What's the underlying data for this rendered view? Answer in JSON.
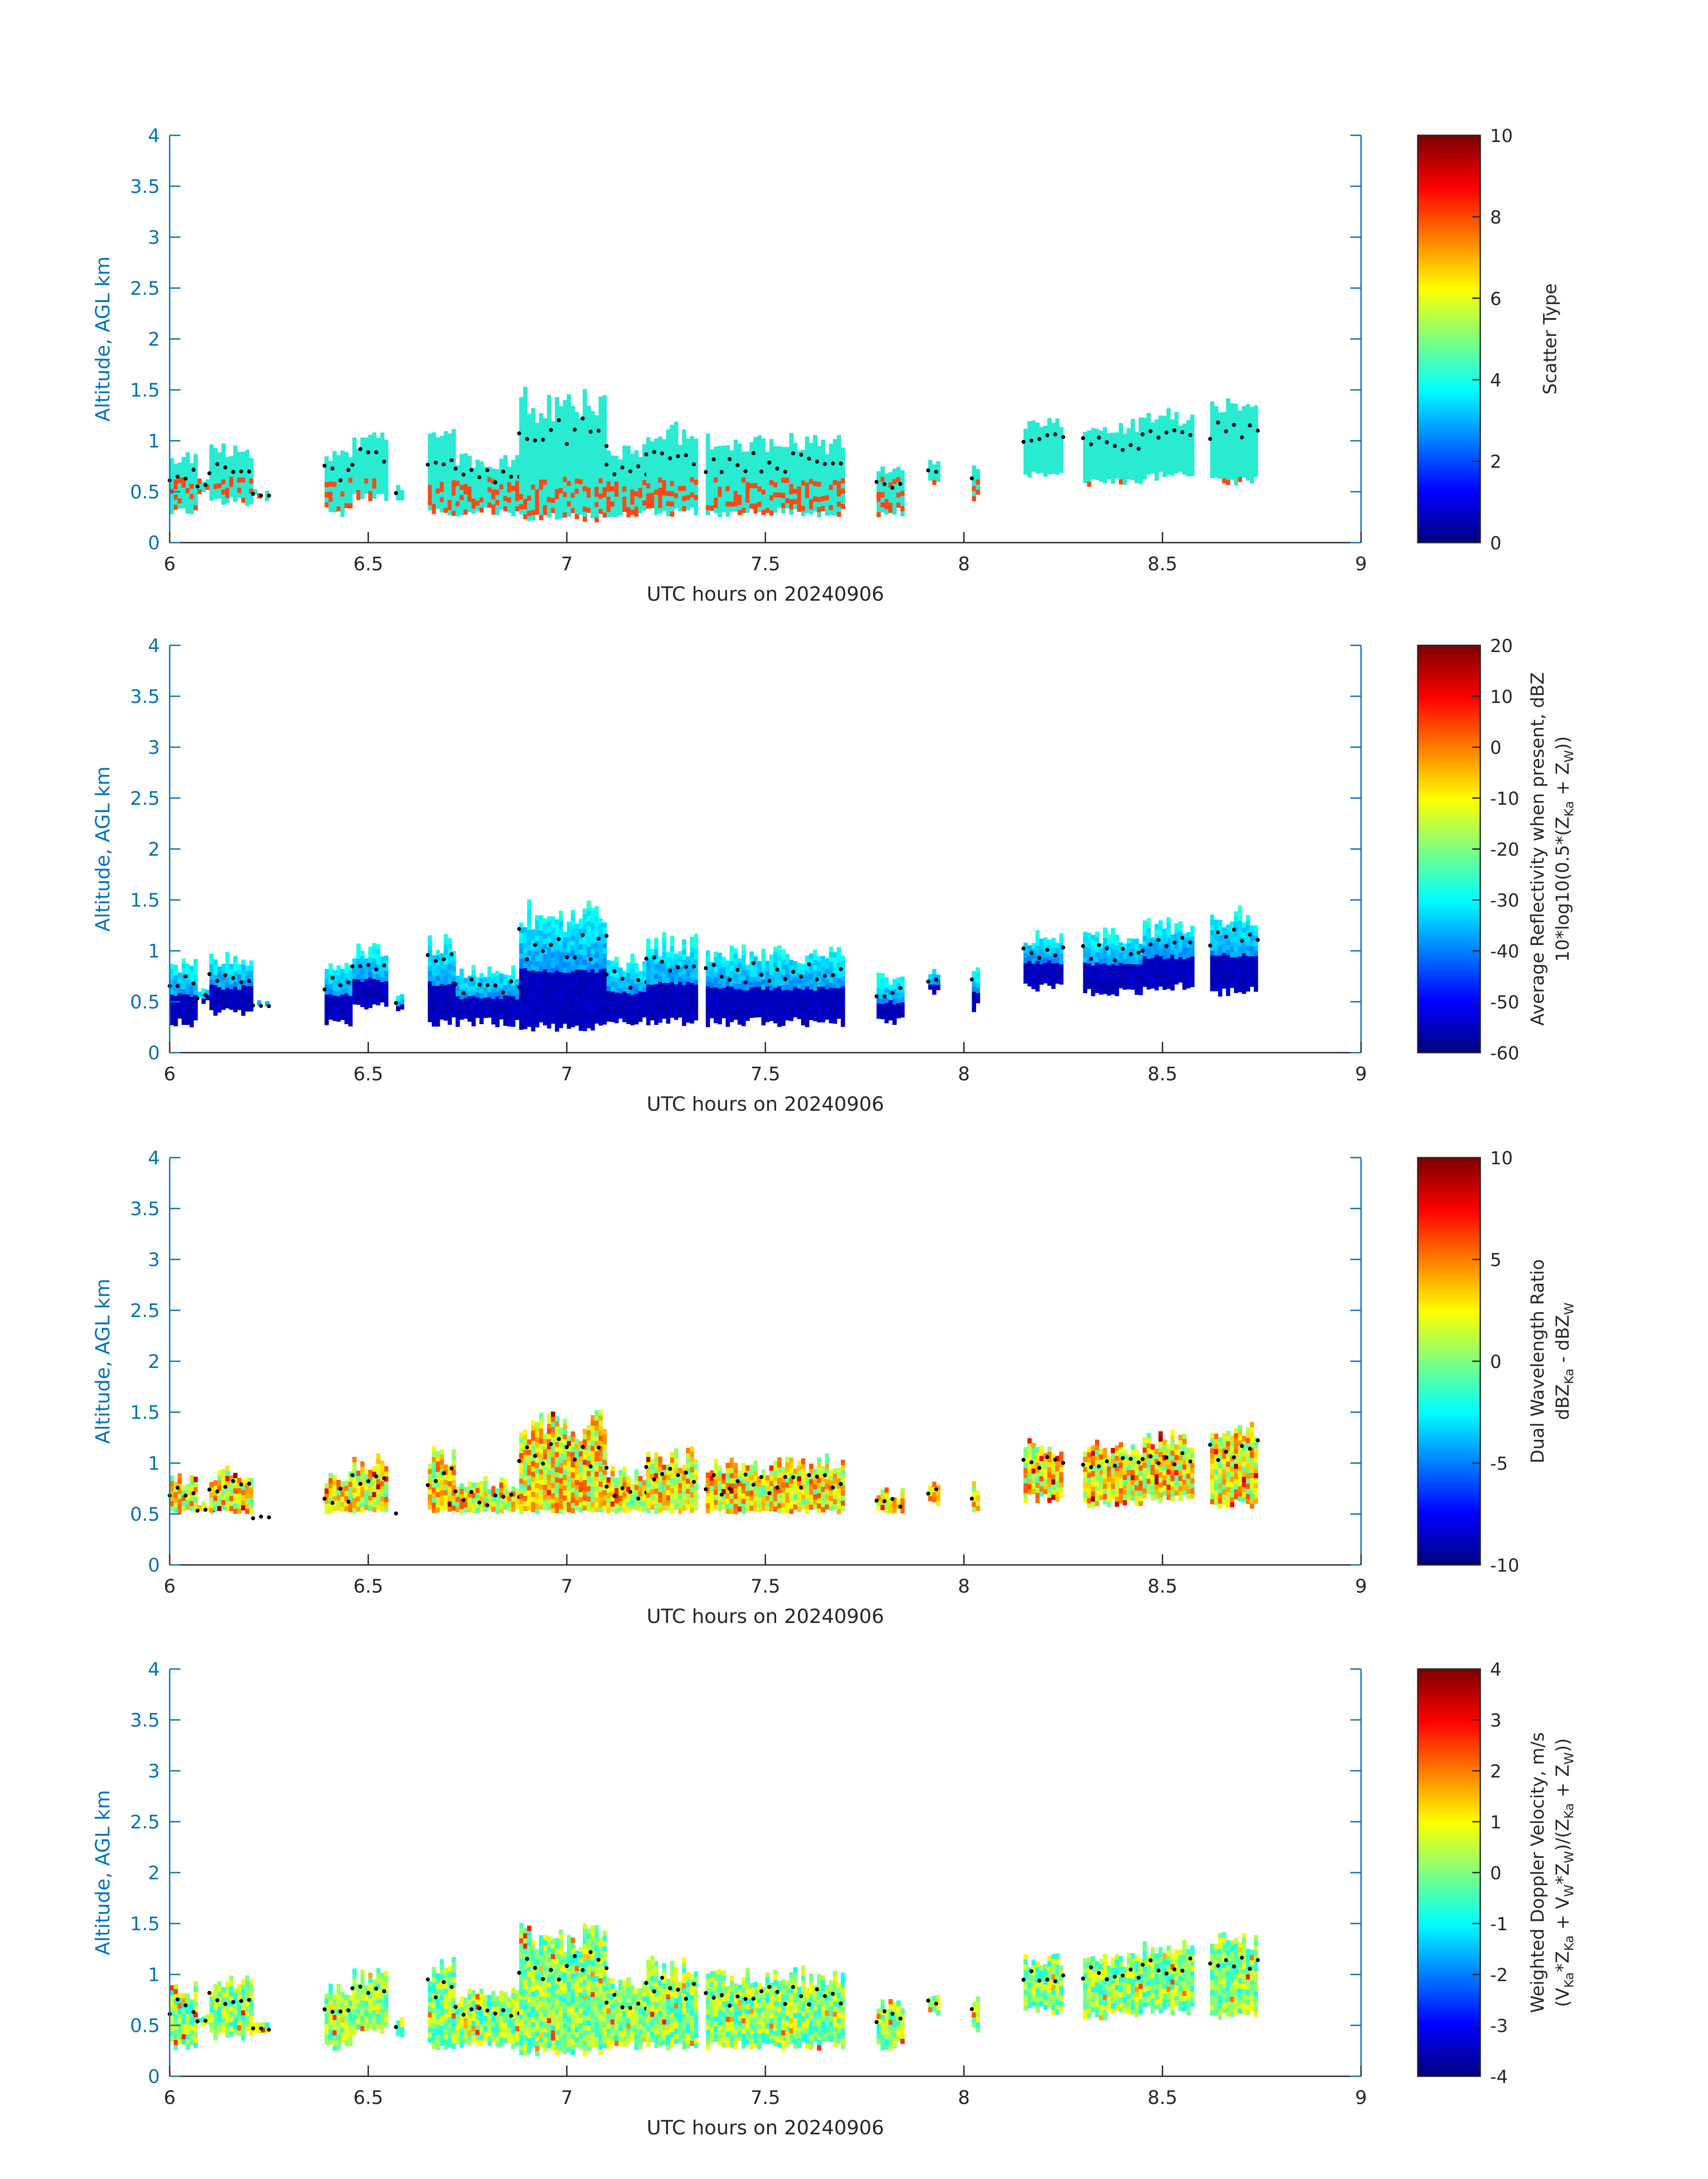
{
  "chart_data": [
    {
      "type": "heatmap",
      "title": "",
      "xlabel": "UTC hours on 20240906",
      "ylabel": "Altitude, AGL km",
      "xlim": [
        6,
        9
      ],
      "ylim": [
        0,
        4
      ],
      "xticks": [
        "6",
        "6.5",
        "7",
        "7.5",
        "8",
        "8.5",
        "9"
      ],
      "yticks": [
        "0",
        "0.5",
        "1",
        "1.5",
        "2",
        "2.5",
        "3",
        "3.5",
        "4"
      ],
      "colorbar": {
        "label_lines": [
          {
            "text": "Scatter Type"
          }
        ],
        "range": [
          0,
          10
        ],
        "ticks": [
          "0",
          "2",
          "4",
          "6",
          "8",
          "10"
        ]
      },
      "colormap": "jet",
      "categorical": true,
      "cloud_top_dots": true
    },
    {
      "type": "heatmap",
      "title": "",
      "xlabel": "UTC hours on 20240906",
      "ylabel": "Altitude, AGL km",
      "xlim": [
        6,
        9
      ],
      "ylim": [
        0,
        4
      ],
      "xticks": [
        "6",
        "6.5",
        "7",
        "7.5",
        "8",
        "8.5",
        "9"
      ],
      "yticks": [
        "0",
        "0.5",
        "1",
        "1.5",
        "2",
        "2.5",
        "3",
        "3.5",
        "4"
      ],
      "colorbar": {
        "label_lines": [
          {
            "text": "Average Reflectivity when present, dBZ"
          },
          {
            "text": "10*log10(0.5*(Z",
            "sub1": "Ka",
            "mid": " + Z",
            "sub2": "W",
            "end": "))"
          }
        ],
        "range": [
          -60,
          20
        ],
        "ticks": [
          "-60",
          "-50",
          "-40",
          "-30",
          "-20",
          "-10",
          "0",
          "10",
          "20"
        ]
      },
      "colormap": "jet",
      "categorical": false,
      "cloud_top_dots": true
    },
    {
      "type": "heatmap",
      "title": "",
      "xlabel": "UTC hours on 20240906",
      "ylabel": "Altitude, AGL km",
      "xlim": [
        6,
        9
      ],
      "ylim": [
        0,
        4
      ],
      "xticks": [
        "6",
        "6.5",
        "7",
        "7.5",
        "8",
        "8.5",
        "9"
      ],
      "yticks": [
        "0",
        "0.5",
        "1",
        "1.5",
        "2",
        "2.5",
        "3",
        "3.5",
        "4"
      ],
      "colorbar": {
        "label_lines": [
          {
            "text": "Dual Wavelength Ratio"
          },
          {
            "text": "dBZ",
            "sub1": "Ka",
            "mid": " - dBZ",
            "sub2": "W",
            "end": ""
          }
        ],
        "range": [
          -10,
          10
        ],
        "ticks": [
          "-10",
          "-5",
          "0",
          "5",
          "10"
        ]
      },
      "colormap": "jet",
      "categorical": false,
      "cloud_top_dots": true
    },
    {
      "type": "heatmap",
      "title": "",
      "xlabel": "UTC hours on 20240906",
      "ylabel": "Altitude, AGL km",
      "xlim": [
        6,
        9
      ],
      "ylim": [
        0,
        4
      ],
      "xticks": [
        "6",
        "6.5",
        "7",
        "7.5",
        "8",
        "8.5",
        "9"
      ],
      "yticks": [
        "0",
        "0.5",
        "1",
        "1.5",
        "2",
        "2.5",
        "3",
        "3.5",
        "4"
      ],
      "colorbar": {
        "label_lines": [
          {
            "text": "Weighted Doppler Velocity, m/s"
          },
          {
            "text": "(V",
            "sub1": "Ka",
            "mid": "*Z",
            "sub2": "Ka",
            "end": " + V",
            "sub3": "W",
            "mid2": "*Z",
            "sub4": "W",
            "end2": ")/(Z",
            "sub5": "Ka",
            "mid3": " + Z",
            "sub6": "W",
            "end3": "))"
          }
        ],
        "range": [
          -4,
          4
        ],
        "ticks": [
          "-4",
          "-3",
          "-2",
          "-1",
          "0",
          "1",
          "2",
          "3",
          "4"
        ]
      },
      "colormap": "jet",
      "categorical": false,
      "cloud_top_dots": true
    }
  ],
  "cloud_segments": [
    {
      "t0": 6.0,
      "t1": 6.07,
      "bottom": 0.25,
      "top": 0.9
    },
    {
      "t0": 6.07,
      "t1": 6.12,
      "bottom": 0.45,
      "top": 0.6
    },
    {
      "t0": 6.1,
      "t1": 6.21,
      "bottom": 0.35,
      "top": 0.95
    },
    {
      "t0": 6.21,
      "t1": 6.25,
      "bottom": 0.4,
      "top": 0.5
    },
    {
      "t0": 6.39,
      "t1": 6.46,
      "bottom": 0.25,
      "top": 0.9
    },
    {
      "t0": 6.46,
      "t1": 6.55,
      "bottom": 0.4,
      "top": 1.05
    },
    {
      "t0": 6.57,
      "t1": 6.59,
      "bottom": 0.35,
      "top": 0.55
    },
    {
      "t0": 6.65,
      "t1": 6.72,
      "bottom": 0.25,
      "top": 1.15
    },
    {
      "t0": 6.72,
      "t1": 6.88,
      "bottom": 0.25,
      "top": 0.85
    },
    {
      "t0": 6.88,
      "t1": 7.1,
      "bottom": 0.2,
      "top": 1.5
    },
    {
      "t0": 7.1,
      "t1": 7.2,
      "bottom": 0.25,
      "top": 0.95
    },
    {
      "t0": 7.2,
      "t1": 7.33,
      "bottom": 0.25,
      "top": 1.15
    },
    {
      "t0": 7.35,
      "t1": 7.7,
      "bottom": 0.25,
      "top": 1.05
    },
    {
      "t0": 7.78,
      "t1": 7.85,
      "bottom": 0.25,
      "top": 0.75
    },
    {
      "t0": 7.91,
      "t1": 7.94,
      "bottom": 0.55,
      "top": 0.8
    },
    {
      "t0": 8.02,
      "t1": 8.04,
      "bottom": 0.4,
      "top": 0.8
    },
    {
      "t0": 8.15,
      "t1": 8.25,
      "bottom": 0.6,
      "top": 1.2
    },
    {
      "t0": 8.3,
      "t1": 8.45,
      "bottom": 0.55,
      "top": 1.2
    },
    {
      "t0": 8.45,
      "t1": 8.58,
      "bottom": 0.6,
      "top": 1.3
    },
    {
      "t0": 8.62,
      "t1": 8.74,
      "bottom": 0.55,
      "top": 1.4
    }
  ]
}
